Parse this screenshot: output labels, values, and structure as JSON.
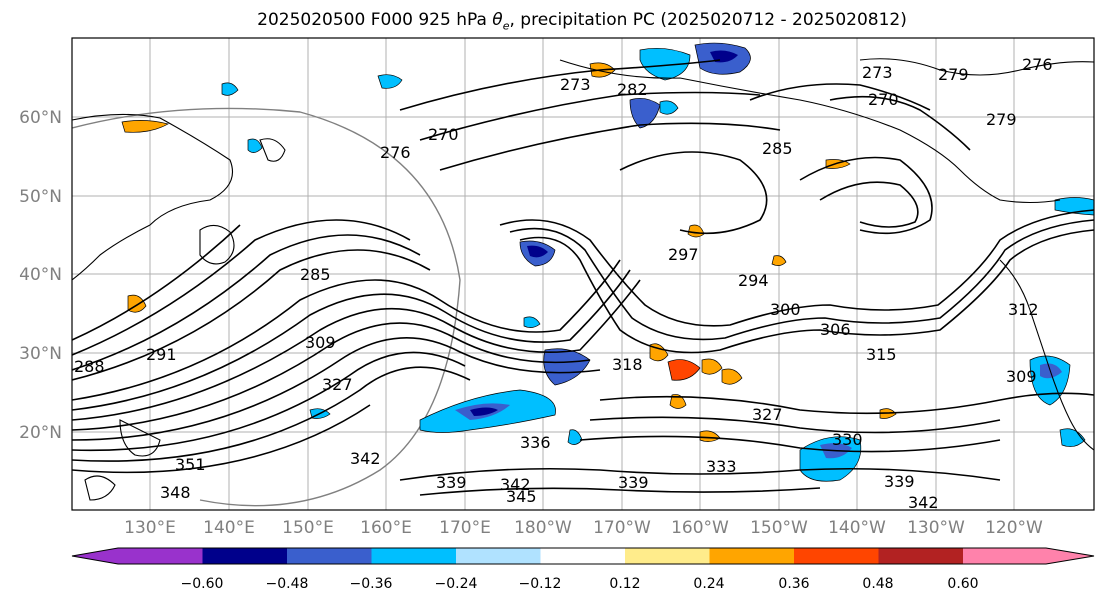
{
  "title_main": "2025020500 F000 925 hPa ",
  "title_symbol": "θ",
  "title_sub": "e",
  "title_rest": ", precipitation PC (2025020712 - 2025020812)",
  "lat_labels": [
    "60°N",
    "50°N",
    "40°N",
    "30°N",
    "20°N"
  ],
  "lon_labels": [
    "130°E",
    "140°E",
    "150°E",
    "160°E",
    "170°E",
    "180°W",
    "170°W",
    "160°W",
    "150°W",
    "140°W",
    "130°W",
    "120°W"
  ],
  "colorbar": {
    "colors": [
      "#9932cc",
      "#00008b",
      "#3a5fcd",
      "#00bfff",
      "#b0e2ff",
      "#ffffff",
      "#ffec8b",
      "#ffa500",
      "#ff4500",
      "#b22222",
      "#ff82ab"
    ],
    "tick_labels": [
      "−0.60",
      "−0.48",
      "−0.36",
      "−0.24",
      "−0.12",
      "0.12",
      "0.24",
      "0.36",
      "0.48",
      "0.60"
    ]
  },
  "contour_labels": [
    "273",
    "282",
    "270",
    "276",
    "285",
    "273",
    "279",
    "276",
    "270",
    "279",
    "285",
    "297",
    "294",
    "300",
    "306",
    "315",
    "291",
    "288",
    "309",
    "327",
    "318",
    "327",
    "330",
    "336",
    "339",
    "342",
    "345",
    "339",
    "333",
    "342",
    "339",
    "348",
    "342",
    "351",
    "309",
    "312"
  ]
}
